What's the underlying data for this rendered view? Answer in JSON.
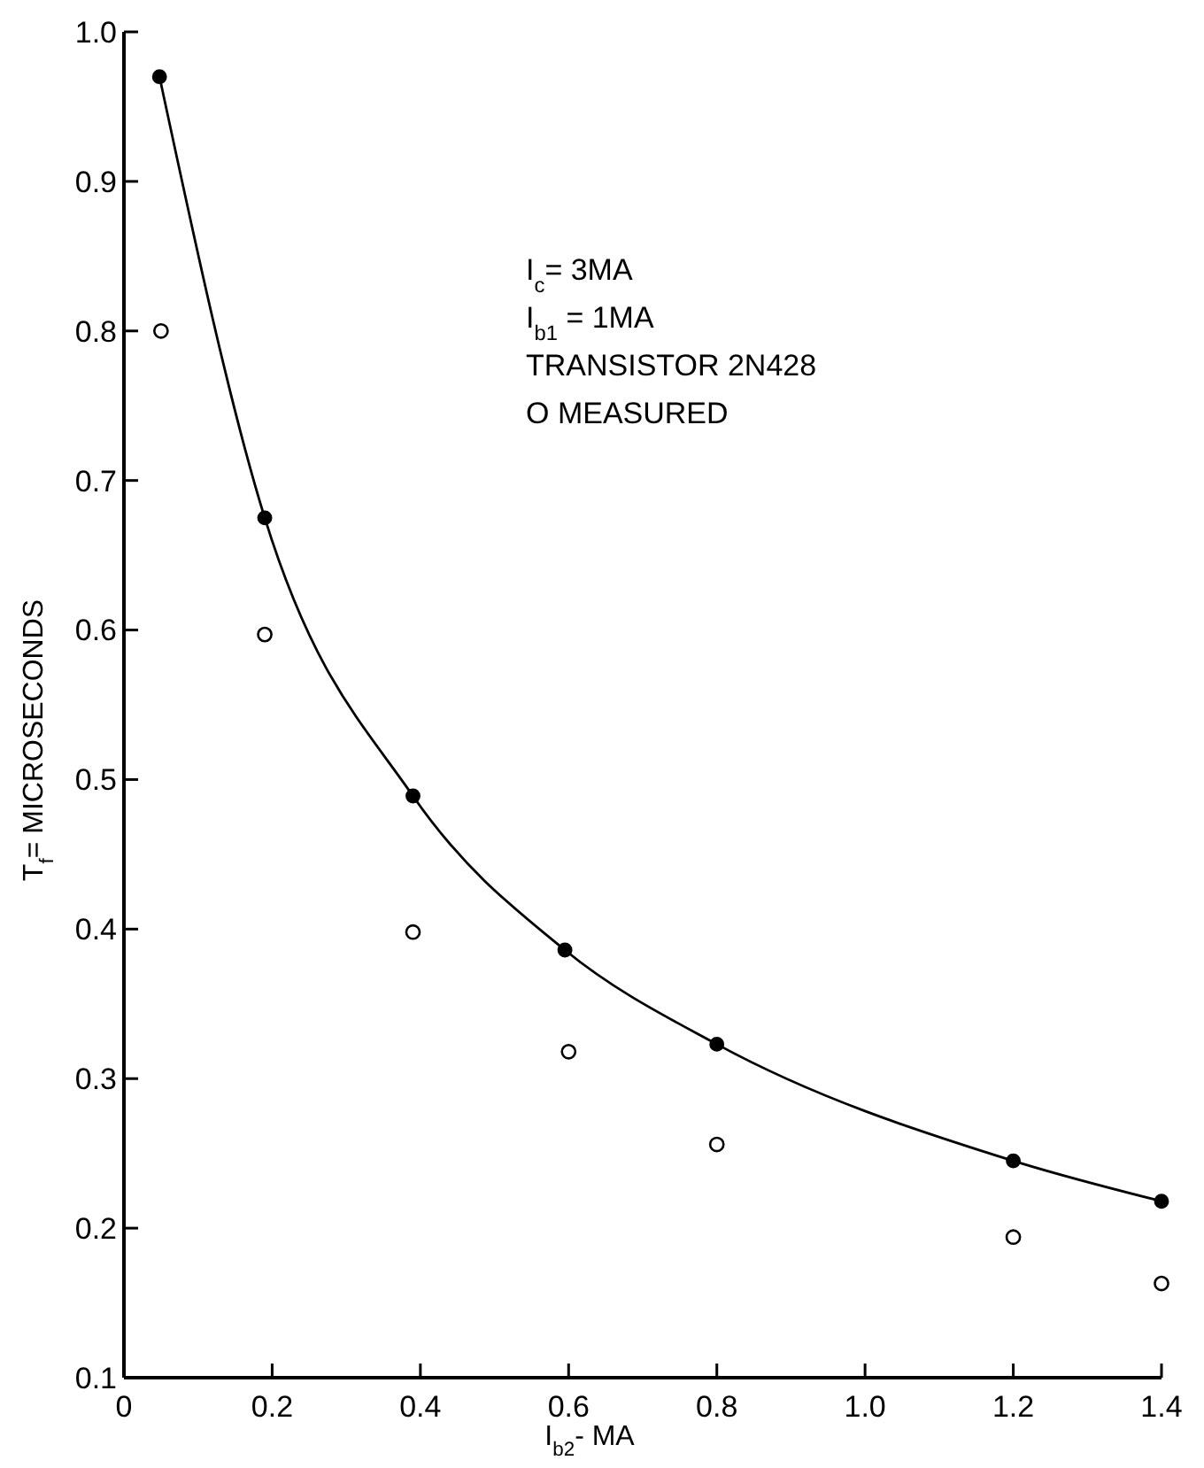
{
  "chart_data": {
    "type": "scatter",
    "xlabel": "I$_{b2}$- MA",
    "ylabel": "T$_{f}$= MICROSECONDS",
    "xlim": [
      0,
      1.4
    ],
    "ylim": [
      0.1,
      1.0
    ],
    "xticks": [
      0,
      0.2,
      0.4,
      0.6,
      0.8,
      {
        "value": 1.0,
        "label": "1.0"
      },
      1.2,
      1.4
    ],
    "yticks": [
      0.1,
      0.2,
      0.3,
      0.4,
      0.5,
      0.6,
      0.7,
      0.8,
      0.9,
      {
        "value": 1.0,
        "label": "1.0"
      }
    ],
    "grid": false,
    "annotations": [
      "I$_{c}$= 3MA",
      "I$_{b1}$ = 1MA",
      "TRANSISTOR  2N428",
      "O MEASURED"
    ],
    "series": [
      {
        "type": "line",
        "color": "#000000",
        "marker": "circle",
        "line_style": "solid",
        "x": [
          0.048,
          0.19,
          0.39,
          0.595,
          0.8,
          1.2,
          1.4
        ],
        "values": [
          0.97,
          0.675,
          0.489,
          0.386,
          0.323,
          0.245,
          0.218
        ]
      },
      {
        "color": "#000000",
        "marker": "circle",
        "x": [
          0.05,
          0.19,
          0.39,
          0.6,
          0.8,
          1.2,
          1.4
        ],
        "values": [
          0.8,
          0.597,
          0.398,
          0.318,
          0.256,
          0.194,
          0.163
        ]
      }
    ]
  }
}
